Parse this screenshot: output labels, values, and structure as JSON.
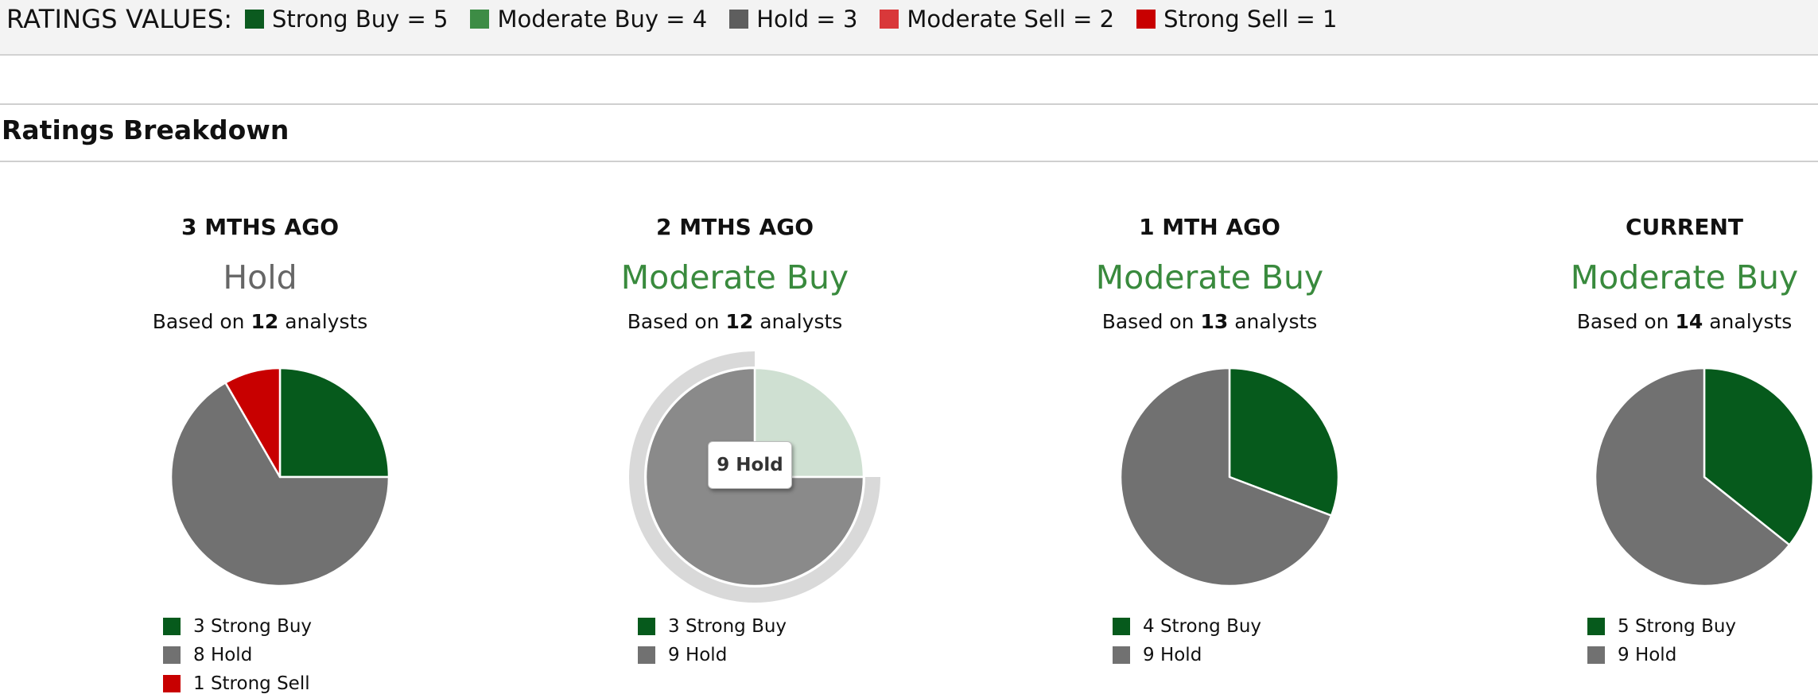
{
  "ratings_values": {
    "title": "RATINGS VALUES:",
    "items": [
      {
        "label": "Strong Buy = 5",
        "color": "#0b5a1f"
      },
      {
        "label": "Moderate Buy = 4",
        "color": "#3d8c45"
      },
      {
        "label": "Hold = 3",
        "color": "#5e5e5e"
      },
      {
        "label": "Moderate Sell = 2",
        "color": "#d9383a"
      },
      {
        "label": "Strong Sell = 1",
        "color": "#c80000"
      }
    ]
  },
  "section": {
    "title": "Ratings Breakdown"
  },
  "colors": {
    "strong_buy": "#065a1c",
    "hold": "#717171",
    "strong_sell": "#c80000",
    "moderate_buy_text": "#398a3d",
    "hold_text": "#666666"
  },
  "tooltip": {
    "text": "9 Hold"
  },
  "chart_data": [
    {
      "type": "pie",
      "title": "3 MTHS AGO",
      "rating": "Hold",
      "based_prefix": "Based on ",
      "analysts": "12",
      "based_suffix": " analysts",
      "slices": [
        {
          "label": "Strong Buy",
          "value": 3,
          "legend": "3 Strong Buy",
          "color": "#065a1c"
        },
        {
          "label": "Hold",
          "value": 8,
          "legend": "8 Hold",
          "color": "#717171"
        },
        {
          "label": "Strong Sell",
          "value": 1,
          "legend": "1 Strong Sell",
          "color": "#c80000"
        }
      ]
    },
    {
      "type": "pie",
      "title": "2 MTHS AGO",
      "rating": "Moderate Buy",
      "based_prefix": "Based on ",
      "analysts": "12",
      "based_suffix": " analysts",
      "highlighted_slice": "Hold",
      "slices": [
        {
          "label": "Strong Buy",
          "value": 3,
          "legend": "3 Strong Buy",
          "color": "#065a1c"
        },
        {
          "label": "Hold",
          "value": 9,
          "legend": "9 Hold",
          "color": "#717171"
        }
      ]
    },
    {
      "type": "pie",
      "title": "1 MTH AGO",
      "rating": "Moderate Buy",
      "based_prefix": "Based on ",
      "analysts": "13",
      "based_suffix": " analysts",
      "slices": [
        {
          "label": "Strong Buy",
          "value": 4,
          "legend": "4 Strong Buy",
          "color": "#065a1c"
        },
        {
          "label": "Hold",
          "value": 9,
          "legend": "9 Hold",
          "color": "#717171"
        }
      ]
    },
    {
      "type": "pie",
      "title": "CURRENT",
      "rating": "Moderate Buy",
      "based_prefix": "Based on ",
      "analysts": "14",
      "based_suffix": " analysts",
      "slices": [
        {
          "label": "Strong Buy",
          "value": 5,
          "legend": "5 Strong Buy",
          "color": "#065a1c"
        },
        {
          "label": "Hold",
          "value": 9,
          "legend": "9 Hold",
          "color": "#717171"
        }
      ]
    }
  ]
}
